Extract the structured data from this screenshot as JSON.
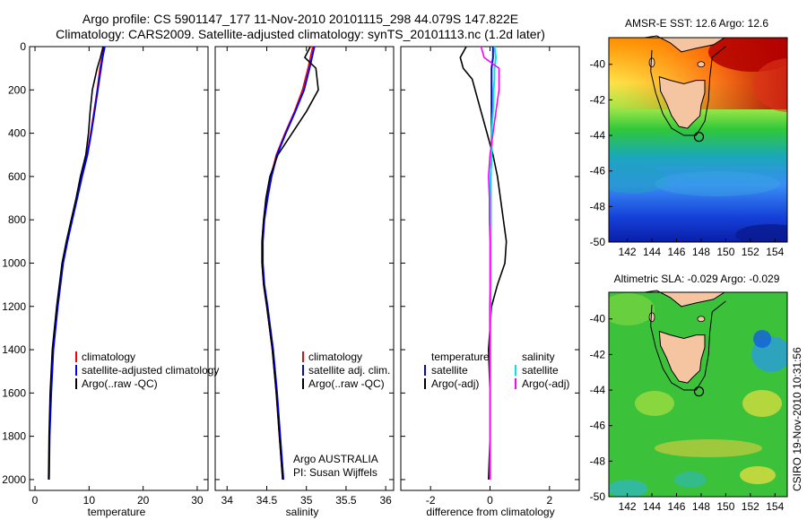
{
  "title": {
    "line1": "Argo profile: CS 5901147_177 11-Nov-2010 20101115_298 44.079S 147.822E",
    "line2": "Climatology: CARS2009. Satellite-adjusted climatology: synTS_20101113.nc (1.2d later)"
  },
  "colors": {
    "climatology": "#ff0000",
    "satellite": "#0000ff",
    "argo": "#000000",
    "salinity_satellite": "#00e5e5",
    "salinity_argo": "#ff00ff",
    "land": "#f5c4a0"
  },
  "chart_data": [
    {
      "type": "line",
      "id": "temperature",
      "xlabel": "temperature",
      "xlim": [
        -1,
        32
      ],
      "ylim": [
        2050,
        0
      ],
      "xticks": [
        0,
        10,
        20,
        30
      ],
      "yticks": [
        0,
        200,
        400,
        600,
        800,
        1000,
        1200,
        1400,
        1600,
        1800,
        2000
      ],
      "legend": [
        "climatology",
        "satellite-adjusted climatology",
        "Argo(..raw -QC)"
      ],
      "depth": [
        0,
        50,
        100,
        200,
        300,
        400,
        500,
        600,
        700,
        800,
        900,
        1000,
        1200,
        1400,
        1600,
        1800,
        2000
      ],
      "series": [
        {
          "name": "climatology",
          "values": [
            12.8,
            12.4,
            12.0,
            11.5,
            10.9,
            10.3,
            9.6,
            8.6,
            7.7,
            6.8,
            5.9,
            5.1,
            4.1,
            3.3,
            2.9,
            2.7,
            2.6
          ]
        },
        {
          "name": "satellite-adjusted climatology",
          "values": [
            12.9,
            12.5,
            12.2,
            11.6,
            11.0,
            10.4,
            9.7,
            8.7,
            7.8,
            6.9,
            6.0,
            5.2,
            4.2,
            3.4,
            3.0,
            2.7,
            2.6
          ]
        },
        {
          "name": "Argo(..raw -QC)",
          "values": [
            12.6,
            12.1,
            11.5,
            10.6,
            10.2,
            9.9,
            9.4,
            8.4,
            7.6,
            6.7,
            5.8,
            5.0,
            4.0,
            3.2,
            2.8,
            2.6,
            2.5
          ]
        }
      ]
    },
    {
      "type": "line",
      "id": "salinity",
      "xlabel": "salinity",
      "xlim": [
        33.85,
        36.1
      ],
      "ylim": [
        2050,
        0
      ],
      "xticks": [
        34,
        34.5,
        35,
        35.5,
        36
      ],
      "legend": [
        "climatology",
        "satellite adj. clim.",
        "Argo(..raw -QC)"
      ],
      "annotation": [
        "Argo AUSTRALIA",
        "PI: Susan Wijffels"
      ],
      "depth": [
        0,
        50,
        100,
        200,
        300,
        400,
        500,
        600,
        700,
        800,
        900,
        1000,
        1100,
        1200,
        1400,
        1600,
        1800,
        2000
      ],
      "series": [
        {
          "name": "climatology",
          "values": [
            35.08,
            35.05,
            35.02,
            34.95,
            34.85,
            34.73,
            34.62,
            34.55,
            34.5,
            34.46,
            34.44,
            34.44,
            34.46,
            34.5,
            34.57,
            34.62,
            34.66,
            34.7
          ]
        },
        {
          "name": "satellite adj. clim.",
          "values": [
            35.1,
            35.07,
            35.04,
            34.97,
            34.86,
            34.74,
            34.63,
            34.56,
            34.51,
            34.47,
            34.45,
            34.45,
            34.47,
            34.51,
            34.58,
            34.63,
            34.67,
            34.71
          ]
        },
        {
          "name": "Argo(..raw -QC)",
          "values": [
            35.05,
            34.98,
            35.12,
            35.15,
            35.0,
            34.82,
            34.64,
            34.54,
            34.49,
            34.46,
            34.44,
            34.44,
            34.46,
            34.5,
            34.57,
            34.62,
            34.66,
            34.7
          ]
        }
      ]
    },
    {
      "type": "line",
      "id": "difference",
      "xlabel": "difference from climatology",
      "xlim": [
        -3,
        3
      ],
      "ylim": [
        2050,
        0
      ],
      "xticks": [
        -2,
        0,
        2
      ],
      "legend_temperature": [
        "temperature",
        "satellite",
        "Argo(-adj)"
      ],
      "legend_salinity": [
        "salinity",
        "satellite",
        "Argo(-adj)"
      ],
      "depth": [
        0,
        50,
        100,
        150,
        200,
        300,
        400,
        500,
        600,
        700,
        800,
        900,
        1000,
        1100,
        1200,
        1400,
        1600,
        1800,
        2000
      ],
      "series": [
        {
          "name": "temperature satellite",
          "values": [
            0.1,
            0.1,
            0.05,
            0.05,
            0.05,
            0.05,
            0.05,
            0.05,
            0.02,
            0.02,
            0.02,
            0.02,
            0.02,
            0.02,
            0.0,
            0.0,
            0.0,
            0.0,
            0.0
          ]
        },
        {
          "name": "temperature Argo(-adj)",
          "values": [
            -0.8,
            -1.0,
            -0.9,
            -0.6,
            -0.5,
            -0.3,
            -0.1,
            0.1,
            0.25,
            0.35,
            0.45,
            0.55,
            0.5,
            0.25,
            0.05,
            -0.05,
            0.0,
            0.0,
            -0.05
          ]
        },
        {
          "name": "salinity satellite",
          "values": [
            0.15,
            0.2,
            0.15,
            0.15,
            0.12,
            0.1,
            0.05,
            0.05,
            0.02,
            0.02,
            0.02,
            0.02,
            0.02,
            0.02,
            0.02,
            0.0,
            0.0,
            0.0,
            0.0
          ]
        },
        {
          "name": "salinity Argo(-adj)",
          "values": [
            -0.3,
            -0.2,
            0.3,
            0.3,
            0.3,
            0.2,
            0.1,
            0.0,
            -0.05,
            -0.02,
            -0.02,
            0.0,
            0.0,
            0.0,
            0.0,
            0.0,
            0.0,
            0.0,
            0.0
          ]
        }
      ]
    },
    {
      "type": "heatmap",
      "id": "sst-map",
      "title": "AMSR-E SST: 12.6 Argo: 12.6",
      "xlim": [
        140.5,
        155
      ],
      "ylim": [
        -50,
        -38.5
      ],
      "xticks": [
        142,
        144,
        146,
        148,
        150,
        152,
        154
      ],
      "yticks": [
        -40,
        -42,
        -44,
        -46,
        -48,
        -50
      ],
      "argo_position": {
        "lon": 147.822,
        "lat": -44.079
      }
    },
    {
      "type": "heatmap",
      "id": "sla-map",
      "title": "Altimetric SLA: -0.029 Argo: -0.029",
      "xlim": [
        140.5,
        155
      ],
      "ylim": [
        -50,
        -38.5
      ],
      "xticks": [
        142,
        144,
        146,
        148,
        150,
        152,
        154
      ],
      "yticks": [
        -40,
        -42,
        -44,
        -46,
        -48,
        -50
      ],
      "argo_position": {
        "lon": 147.822,
        "lat": -44.079
      }
    }
  ],
  "footer": "CSIRO 19-Nov-2010 10:31:56"
}
